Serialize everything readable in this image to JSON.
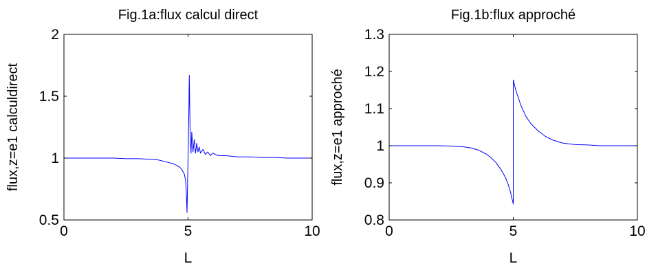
{
  "chart_data": [
    {
      "type": "line",
      "title": "Fig.1a:flux calcul direct",
      "xlabel": "L",
      "ylabel": "flux,z=e1 calculdirect",
      "xlim": [
        0,
        10
      ],
      "ylim": [
        0.5,
        2
      ],
      "xticks": [
        0,
        5,
        10
      ],
      "xtick_labels": [
        "0",
        "5",
        "10"
      ],
      "yticks": [
        0.5,
        1,
        1.5,
        2
      ],
      "ytick_labels": [
        "0.5",
        "1",
        "1.5",
        "2"
      ],
      "grid": false,
      "series": [
        {
          "color": "#0000ff",
          "x": [
            0,
            0.5,
            1,
            1.5,
            2,
            2.5,
            3,
            3.5,
            3.8,
            4.0,
            4.2,
            4.4,
            4.5,
            4.6,
            4.7,
            4.8,
            4.85,
            4.9,
            4.93,
            4.96,
            5.0,
            5.03,
            5.05,
            5.08,
            5.1,
            5.12,
            5.15,
            5.2,
            5.25,
            5.3,
            5.35,
            5.4,
            5.45,
            5.5,
            5.6,
            5.7,
            5.8,
            5.9,
            6.0,
            6.2,
            6.5,
            7.0,
            7.5,
            8.0,
            8.5,
            9.0,
            9.5,
            10
          ],
          "y": [
            1.0,
            1.0,
            1.0,
            1.0,
            1.0,
            0.995,
            0.995,
            0.99,
            0.985,
            0.975,
            0.965,
            0.955,
            0.945,
            0.935,
            0.92,
            0.89,
            0.87,
            0.82,
            0.72,
            0.56,
            1.0,
            1.35,
            1.67,
            1.25,
            1.12,
            1.04,
            1.21,
            1.05,
            1.15,
            1.04,
            1.12,
            1.05,
            1.09,
            1.04,
            1.07,
            1.03,
            1.05,
            1.02,
            1.04,
            1.02,
            1.02,
            1.01,
            1.01,
            1.005,
            1.005,
            1.0,
            1.0,
            1.0
          ]
        }
      ]
    },
    {
      "type": "line",
      "title": "Fig.1b:flux approché",
      "xlabel": "L",
      "ylabel": "flux,z=e1 approché",
      "xlim": [
        0,
        10
      ],
      "ylim": [
        0.8,
        1.3
      ],
      "xticks": [
        0,
        5,
        10
      ],
      "xtick_labels": [
        "0",
        "5",
        "10"
      ],
      "yticks": [
        0.8,
        0.9,
        1,
        1.1,
        1.2,
        1.3
      ],
      "ytick_labels": [
        "0.8",
        "0.9",
        "1",
        "1.1",
        "1.2",
        "1.3"
      ],
      "grid": false,
      "series": [
        {
          "color": "#0000ff",
          "x": [
            0,
            0.5,
            1,
            1.5,
            2,
            2.5,
            3,
            3.3,
            3.6,
            3.9,
            4.1,
            4.3,
            4.5,
            4.6,
            4.7,
            4.8,
            4.9,
            4.95,
            5.0,
            5.0,
            5.1,
            5.2,
            5.3,
            5.4,
            5.5,
            5.7,
            6.0,
            6.3,
            6.6,
            7.0,
            7.5,
            8.0,
            8.5,
            9.0,
            9.5,
            10
          ],
          "y": [
            1.0,
            1.0,
            1.0,
            1.0,
            1.0,
            0.999,
            0.997,
            0.994,
            0.988,
            0.978,
            0.968,
            0.955,
            0.936,
            0.925,
            0.912,
            0.895,
            0.872,
            0.857,
            0.843,
            1.177,
            1.15,
            1.13,
            1.11,
            1.095,
            1.08,
            1.06,
            1.04,
            1.025,
            1.015,
            1.007,
            1.003,
            1.002,
            1.0,
            1.0,
            1.0,
            1.0
          ]
        }
      ]
    }
  ]
}
